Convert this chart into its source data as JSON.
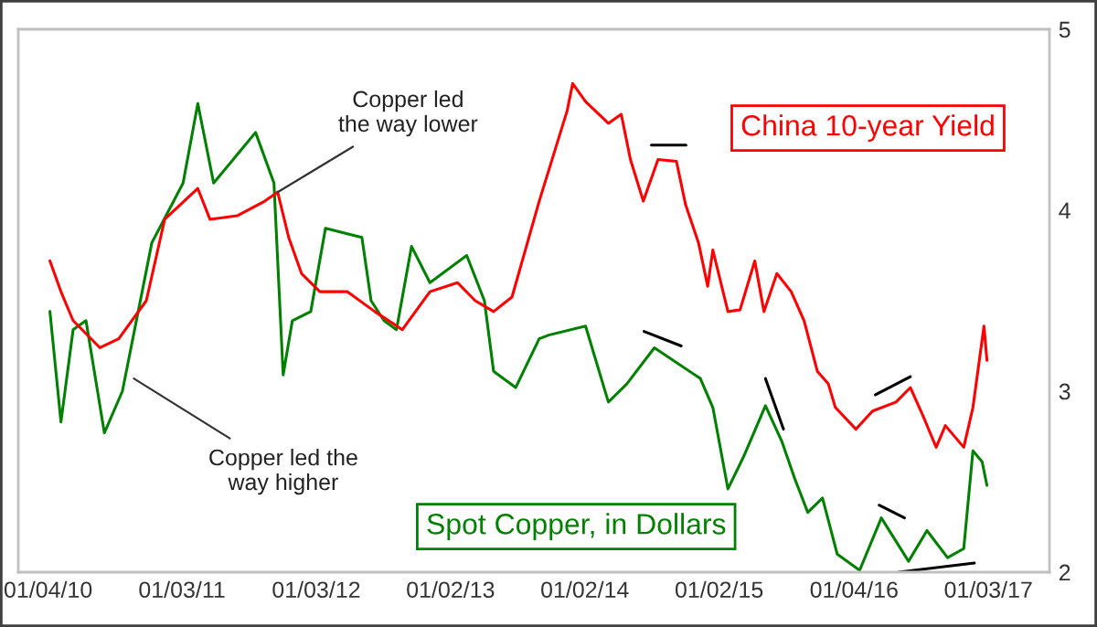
{
  "chart_data": {
    "type": "line",
    "xlim": [
      "2009-10-15",
      "2017-06-18"
    ],
    "xticks": [
      {
        "value": "2010-01-04",
        "label": "01/04/10"
      },
      {
        "value": "2011-01-03",
        "label": "01/03/11"
      },
      {
        "value": "2012-01-03",
        "label": "01/03/12"
      },
      {
        "value": "2013-01-02",
        "label": "01/02/13"
      },
      {
        "value": "2014-01-02",
        "label": "01/02/14"
      },
      {
        "value": "2015-01-02",
        "label": "01/02/15"
      },
      {
        "value": "2016-01-04",
        "label": "01/04/16"
      },
      {
        "value": "2017-01-03",
        "label": "01/03/17"
      }
    ],
    "ylim": [
      2,
      5
    ],
    "yticks": [
      2,
      3,
      4,
      5
    ],
    "grid": false,
    "legend": false,
    "series": [
      {
        "name": "Spot Copper, in Dollars",
        "color": "#008000",
        "x": [
          "2010-01-09",
          "2010-02-08",
          "2010-03-13",
          "2010-04-17",
          "2010-06-06",
          "2010-07-25",
          "2010-10-13",
          "2011-01-06",
          "2011-02-15",
          "2011-03-30",
          "2011-07-22",
          "2011-09-10",
          "2011-10-05",
          "2011-10-30",
          "2011-12-19",
          "2012-01-28",
          "2012-03-27",
          "2012-05-06",
          "2012-05-31",
          "2012-07-05",
          "2012-08-08",
          "2012-09-18",
          "2012-11-07",
          "2013-02-15",
          "2013-04-04",
          "2013-04-29",
          "2013-06-28",
          "2013-08-31",
          "2013-09-26",
          "2014-01-04",
          "2014-03-07",
          "2014-04-26",
          "2014-07-10",
          "2014-11-12",
          "2014-12-16",
          "2015-01-26",
          "2015-03-10",
          "2015-05-08",
          "2015-06-22",
          "2015-07-26",
          "2015-08-31",
          "2015-10-10",
          "2015-11-19",
          "2016-01-19",
          "2016-03-18",
          "2016-05-31",
          "2016-07-20",
          "2016-09-14",
          "2016-10-28",
          "2016-11-22",
          "2016-12-17",
          "2016-12-30"
        ],
        "values": [
          3.44,
          2.83,
          3.34,
          3.39,
          2.77,
          3.0,
          3.82,
          4.15,
          4.59,
          4.15,
          4.43,
          4.15,
          3.09,
          3.39,
          3.44,
          3.9,
          3.87,
          3.85,
          3.5,
          3.39,
          3.34,
          3.8,
          3.6,
          3.75,
          3.5,
          3.11,
          3.02,
          3.29,
          3.31,
          3.36,
          2.94,
          3.04,
          3.24,
          3.07,
          2.91,
          2.46,
          2.64,
          2.92,
          2.72,
          2.52,
          2.33,
          2.41,
          2.1,
          2.01,
          2.3,
          2.06,
          2.23,
          2.08,
          2.13,
          2.67,
          2.61,
          2.48
        ]
      },
      {
        "name": "China 10-year Yield",
        "color": "#ff0000",
        "x": [
          "2010-01-09",
          "2010-02-08",
          "2010-03-13",
          "2010-05-25",
          "2010-07-15",
          "2010-09-28",
          "2010-11-17",
          "2011-02-15",
          "2011-03-20",
          "2011-06-03",
          "2011-08-16",
          "2011-09-20",
          "2011-10-20",
          "2011-11-24",
          "2012-01-13",
          "2012-03-27",
          "2012-06-10",
          "2012-08-24",
          "2012-11-07",
          "2013-01-21",
          "2013-03-10",
          "2013-04-29",
          "2013-06-18",
          "2013-08-31",
          "2013-11-15",
          "2013-11-30",
          "2014-01-04",
          "2014-03-07",
          "2014-04-11",
          "2014-05-06",
          "2014-06-10",
          "2014-07-20",
          "2014-09-08",
          "2014-10-03",
          "2014-11-07",
          "2014-12-02",
          "2014-12-16",
          "2015-01-26",
          "2015-02-28",
          "2015-04-09",
          "2015-05-04",
          "2015-06-08",
          "2015-07-17",
          "2015-08-21",
          "2015-09-26",
          "2015-10-26",
          "2015-11-14",
          "2016-01-09",
          "2016-02-23",
          "2016-04-27",
          "2016-06-05",
          "2016-07-10",
          "2016-08-14",
          "2016-09-08",
          "2016-10-28",
          "2016-11-22",
          "2016-12-22",
          "2016-12-30"
        ],
        "values": [
          3.72,
          3.55,
          3.39,
          3.24,
          3.29,
          3.5,
          3.95,
          4.12,
          3.95,
          3.97,
          4.05,
          4.1,
          3.85,
          3.65,
          3.55,
          3.55,
          3.44,
          3.34,
          3.55,
          3.6,
          3.5,
          3.44,
          3.52,
          4.05,
          4.55,
          4.7,
          4.6,
          4.48,
          4.53,
          4.28,
          4.05,
          4.28,
          4.27,
          4.03,
          3.82,
          3.58,
          3.78,
          3.44,
          3.45,
          3.72,
          3.44,
          3.65,
          3.55,
          3.39,
          3.11,
          3.04,
          2.91,
          2.79,
          2.89,
          2.94,
          3.02,
          2.86,
          2.69,
          2.81,
          2.69,
          2.91,
          3.36,
          3.17
        ]
      },
      {
        "type": "line",
        "color": "#000000",
        "x": [
          "2014-07-02",
          "2014-10-04"
        ],
        "values": [
          4.36,
          4.36
        ]
      },
      {
        "type": "line",
        "color": "#000000",
        "x": [
          "2014-06-12",
          "2014-09-21"
        ],
        "values": [
          3.33,
          3.25
        ]
      },
      {
        "type": "line",
        "color": "#000000",
        "x": [
          "2015-05-08",
          "2015-06-26"
        ],
        "values": [
          3.07,
          2.79
        ]
      },
      {
        "type": "line",
        "color": "#000000",
        "x": [
          "2016-03-02",
          "2016-06-05"
        ],
        "values": [
          2.98,
          3.08
        ]
      },
      {
        "type": "line",
        "color": "#000000",
        "x": [
          "2016-03-12",
          "2016-05-20"
        ],
        "values": [
          2.37,
          2.3
        ]
      },
      {
        "type": "line",
        "color": "#000000",
        "x": [
          "2016-05-04",
          "2016-11-26"
        ],
        "values": [
          2.0,
          2.05
        ]
      }
    ],
    "annotations": [
      {
        "text": "Copper led\nthe way lower",
        "x": "2011-09-20",
        "y": 4.1
      },
      {
        "text": "Copper led the\nway higher",
        "x": "2010-08-25",
        "y": 3.07
      }
    ]
  }
}
